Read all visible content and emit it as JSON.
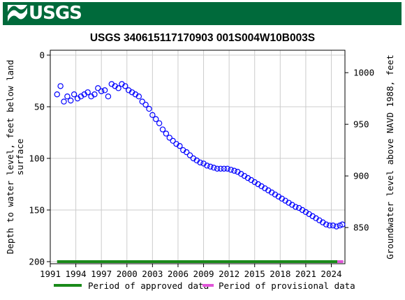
{
  "header": {
    "logo_text": "USGS",
    "logo_icon": "usgs-wave-icon"
  },
  "chart_data": {
    "type": "scatter",
    "title": "USGS 340615117170903 001S004W10B003S",
    "ylabel_left": "Depth to water level, feet below land surface",
    "ylabel_left_lines": [
      "Depth to water level, feet below land",
      "surface"
    ],
    "ylabel_right": "Groundwater level above NAVD 1988, feet",
    "ylim_left": [
      0,
      200
    ],
    "ylim_right_ticks": [
      850,
      900,
      950,
      1000
    ],
    "yticks_left": [
      "0",
      "50",
      "100",
      "150",
      "200"
    ],
    "xlim": [
      1991,
      2025.6
    ],
    "xticks": [
      "1991",
      "1994",
      "1997",
      "2000",
      "2003",
      "2006",
      "2009",
      "2012",
      "2015",
      "2018",
      "2021",
      "2024"
    ],
    "grid": true,
    "marker_color": "#0000ff",
    "legend": {
      "placement": "bottom",
      "items": [
        {
          "label": "Period of approved data",
          "color": "#1a8a1a"
        },
        {
          "label": "Period of provisional data",
          "color": "#e055d8"
        }
      ]
    },
    "periods": {
      "approved": [
        1991.8,
        2024.7
      ],
      "provisional": [
        2024.7,
        2025.4
      ]
    },
    "series": [
      {
        "x": [
          1991.8,
          1992.2,
          1992.6,
          1993.0,
          1993.4,
          1993.8,
          1994.2,
          1994.6,
          1995.0,
          1995.4,
          1995.8,
          1996.2,
          1996.6,
          1997.0,
          1997.4,
          1997.8,
          1998.2,
          1998.6,
          1999.0,
          1999.4,
          1999.8,
          2000.2,
          2000.6,
          2001.0,
          2001.4,
          2001.8,
          2002.2,
          2002.6,
          2003.0,
          2003.4,
          2003.8,
          2004.2,
          2004.6,
          2005.0,
          2005.4,
          2005.8,
          2006.2,
          2006.6,
          2007.0,
          2007.4,
          2007.8,
          2008.2,
          2008.6,
          2009.0,
          2009.4,
          2009.8,
          2010.2,
          2010.6,
          2011.0,
          2011.4,
          2011.8,
          2012.2,
          2012.6,
          2013.0,
          2013.4,
          2013.8,
          2014.2,
          2014.6,
          2015.0,
          2015.4,
          2015.8,
          2016.2,
          2016.6,
          2017.0,
          2017.4,
          2017.8,
          2018.2,
          2018.6,
          2019.0,
          2019.4,
          2019.8,
          2020.2,
          2020.6,
          2021.0,
          2021.4,
          2021.8,
          2022.2,
          2022.6,
          2023.0,
          2023.4,
          2023.8,
          2024.2,
          2024.6,
          2025.0,
          2025.3
        ],
        "y": [
          38,
          30,
          45,
          40,
          44,
          38,
          42,
          40,
          38,
          36,
          40,
          38,
          32,
          35,
          34,
          40,
          28,
          30,
          32,
          28,
          30,
          34,
          36,
          38,
          40,
          45,
          48,
          52,
          58,
          62,
          66,
          72,
          76,
          80,
          83,
          86,
          88,
          92,
          94,
          97,
          100,
          102,
          104,
          105,
          107,
          108,
          109,
          110,
          110,
          110,
          110,
          111,
          112,
          113,
          115,
          117,
          119,
          121,
          123,
          125,
          127,
          129,
          131,
          133,
          135,
          137,
          139,
          141,
          143,
          145,
          147,
          148,
          150,
          152,
          154,
          156,
          158,
          160,
          162,
          164,
          165,
          165,
          166,
          165,
          164
        ]
      }
    ]
  }
}
